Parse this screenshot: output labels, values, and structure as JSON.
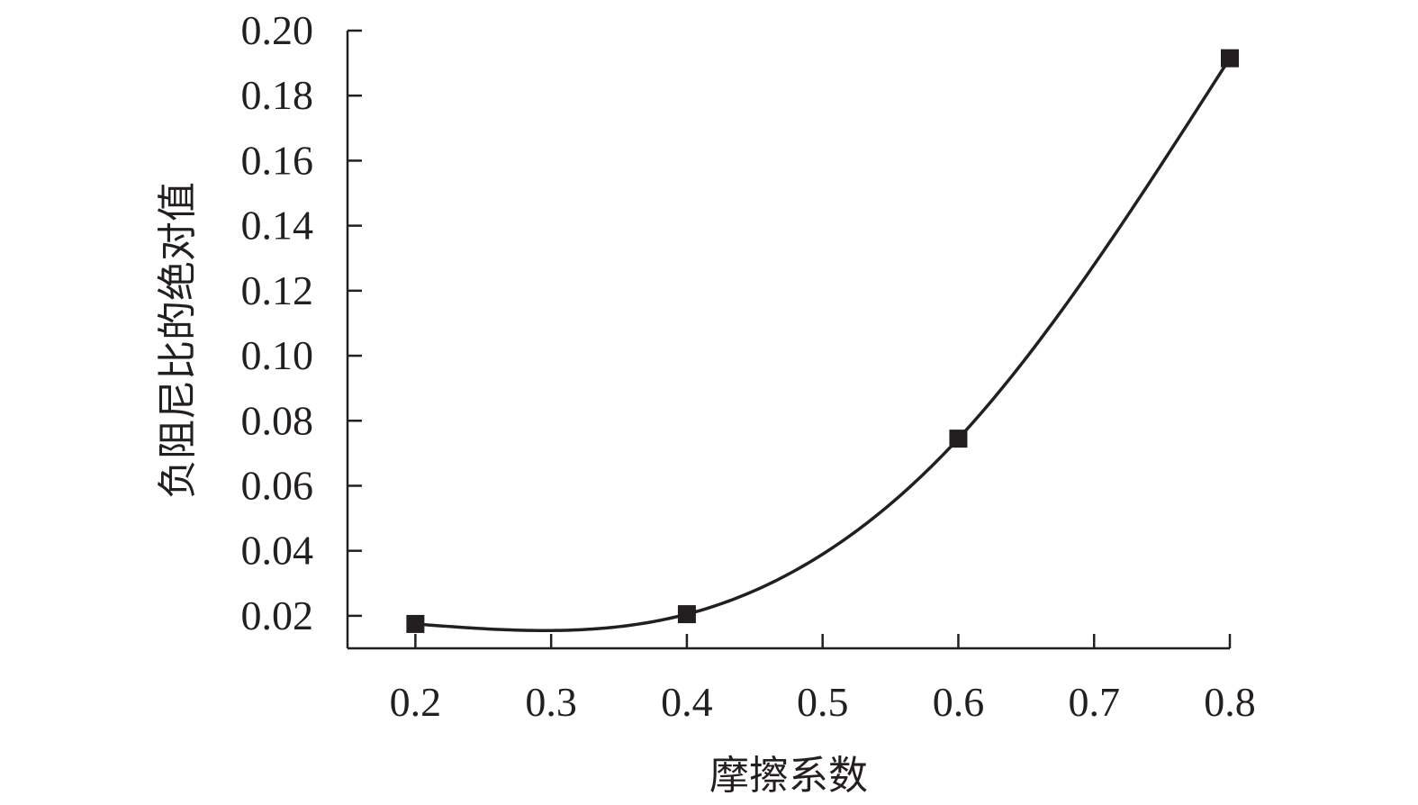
{
  "chart_data": {
    "type": "line",
    "title": "",
    "xlabel": "摩擦系数",
    "ylabel": "负阻尼比的绝对值",
    "xlim": [
      0.15,
      0.8
    ],
    "ylim": [
      0.01,
      0.2
    ],
    "xticks": [
      0.2,
      0.3,
      0.4,
      0.5,
      0.6,
      0.7,
      0.8
    ],
    "xtick_labels": [
      "0.2",
      "0.3",
      "0.4",
      "0.5",
      "0.6",
      "0.7",
      "0.8"
    ],
    "yticks": [
      0.02,
      0.04,
      0.06,
      0.08,
      0.1,
      0.12,
      0.14,
      0.16,
      0.18,
      0.2
    ],
    "ytick_labels": [
      "0.02",
      "0.04",
      "0.06",
      "0.08",
      "0.10",
      "0.12",
      "0.14",
      "0.16",
      "0.18",
      "0.20"
    ],
    "grid": false,
    "legend": "none",
    "marker": "square",
    "smooth": true,
    "series": [
      {
        "x": [
          0.2,
          0.4,
          0.6,
          0.8
        ],
        "y": [
          0.0175,
          0.0205,
          0.0745,
          0.1915
        ]
      }
    ],
    "colors": {
      "axis": "#231f20",
      "line": "#231f20",
      "marker": "#231f20"
    }
  }
}
